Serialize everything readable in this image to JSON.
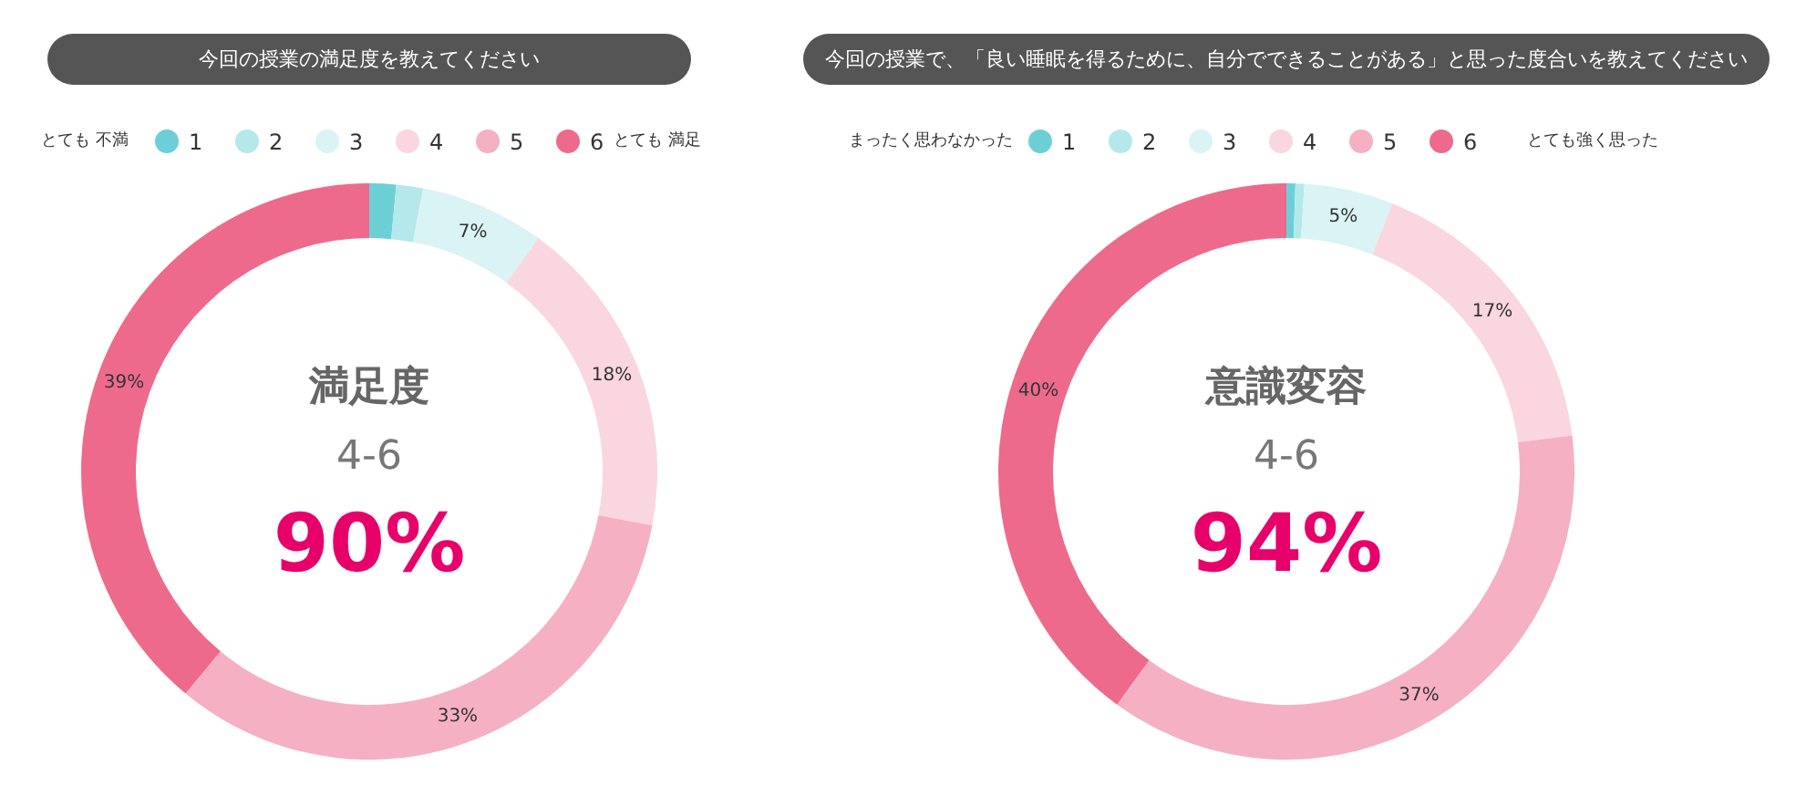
{
  "chart_data": [
    {
      "type": "donut",
      "title": "今回の授業の満足度を教えてください",
      "categories": [
        "1",
        "2",
        "3",
        "4",
        "5",
        "6"
      ],
      "values": [
        1.5,
        1.5,
        7,
        18,
        33,
        39
      ],
      "colors": [
        "#6dcfd6",
        "#b5e8ea",
        "#daf3f4",
        "#fad6e0",
        "#f5b0c4",
        "#ee6a8c"
      ],
      "value_labels": [
        null,
        null,
        "7%",
        "18%",
        "33%",
        "39%"
      ],
      "legend": "top",
      "annotations": [
        "とても 不満",
        "とても 満足",
        "満足度",
        "4-6",
        "90%"
      ]
    },
    {
      "type": "donut",
      "title": "今回の授業で、「良い睡眠を得るために、自分でできることがある」と思った度合いを教えてください",
      "categories": [
        "1",
        "2",
        "3",
        "4",
        "5",
        "6"
      ],
      "values": [
        0.5,
        0.5,
        5,
        17,
        37,
        40
      ],
      "colors": [
        "#6dcfd6",
        "#b5e8ea",
        "#daf3f4",
        "#fad6e0",
        "#f5b0c4",
        "#ee6a8c"
      ],
      "value_labels": [
        null,
        null,
        "5%",
        "17%",
        "37%",
        "40%"
      ],
      "legend": "top",
      "annotations": [
        "まったく思わなかった",
        "とても強く思った",
        "意識変容",
        "4-6",
        "94%"
      ]
    }
  ]
}
